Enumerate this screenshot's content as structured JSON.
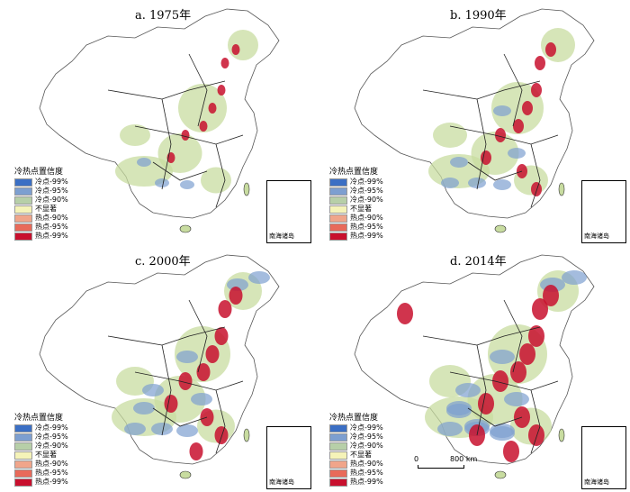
{
  "panels": [
    {
      "title": "a. 1975年",
      "level": 1
    },
    {
      "title": "b. 1990年",
      "level": 2
    },
    {
      "title": "c. 2000年",
      "level": 3
    },
    {
      "title": "d. 2014年",
      "level": 4
    }
  ],
  "legend": {
    "title": "冷热点置信度",
    "items": [
      {
        "label": "冷点-99%",
        "color": "#3b6fc4"
      },
      {
        "label": "冷点-95%",
        "color": "#7d9fd0"
      },
      {
        "label": "冷点-90%",
        "color": "#b7cfa8"
      },
      {
        "label": "不显著",
        "color": "#f5f3b8"
      },
      {
        "label": "热点-90%",
        "color": "#f0a58a"
      },
      {
        "label": "热点-95%",
        "color": "#e86a5a"
      },
      {
        "label": "热点-99%",
        "color": "#c8102e"
      }
    ]
  },
  "inset_label": "南海诸岛",
  "scale": {
    "start": "0",
    "end": "800 km"
  }
}
